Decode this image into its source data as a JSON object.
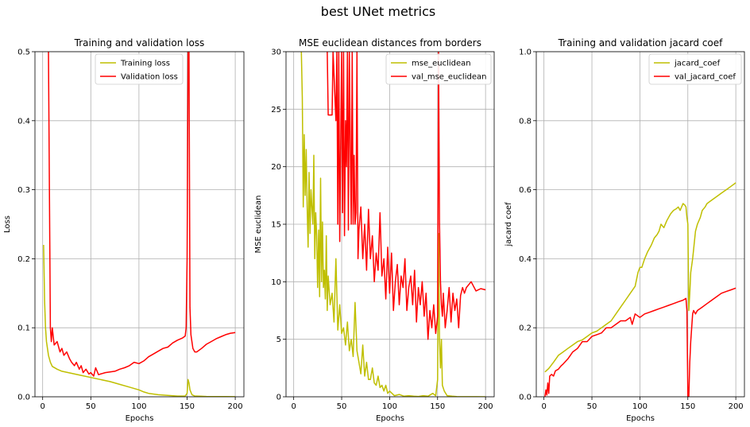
{
  "figure": {
    "suptitle": "best UNet metrics"
  },
  "chart_data": [
    {
      "type": "line",
      "title": "Training and validation loss",
      "xlabel": "Epochs",
      "ylabel": "Loss",
      "xlim": [
        -8,
        209
      ],
      "ylim": [
        0,
        0.5
      ],
      "xticks": [
        0,
        50,
        100,
        150,
        200
      ],
      "xtick_labels": [
        "0",
        "50",
        "100",
        "150",
        "200"
      ],
      "yticks": [
        0,
        0.1,
        0.2,
        0.3,
        0.4,
        0.5
      ],
      "ytick_labels": [
        "0.0",
        "0.1",
        "0.2",
        "0.3",
        "0.4",
        "0.5"
      ],
      "grid": true,
      "legend_position": "top-center",
      "series": [
        {
          "name": "Training loss",
          "color": "#bfbf00",
          "x": [
            1,
            2,
            3,
            4,
            6,
            8,
            10,
            15,
            20,
            30,
            40,
            50,
            60,
            70,
            80,
            90,
            100,
            105,
            110,
            120,
            130,
            140,
            148,
            150,
            151,
            152,
            153,
            155,
            158,
            160,
            170,
            180,
            190,
            200
          ],
          "y": [
            0.22,
            0.14,
            0.1,
            0.08,
            0.06,
            0.05,
            0.044,
            0.04,
            0.037,
            0.034,
            0.031,
            0.028,
            0.025,
            0.022,
            0.018,
            0.014,
            0.01,
            0.007,
            0.005,
            0.003,
            0.002,
            0.001,
            0.001,
            0.005,
            0.025,
            0.02,
            0.01,
            0.003,
            0.001,
            0.001,
            0.0005,
            0.0003,
            0.0002,
            0.0001
          ]
        },
        {
          "name": "Validation loss",
          "color": "#ff0000",
          "x": [
            6,
            7,
            8,
            9,
            10,
            12,
            15,
            18,
            20,
            22,
            25,
            28,
            30,
            33,
            35,
            38,
            40,
            42,
            45,
            48,
            50,
            53,
            55,
            58,
            60,
            65,
            70,
            75,
            80,
            85,
            90,
            95,
            100,
            105,
            110,
            115,
            120,
            125,
            130,
            135,
            140,
            145,
            148,
            149,
            150,
            151,
            152,
            153,
            154,
            156,
            158,
            160,
            165,
            170,
            175,
            180,
            185,
            190,
            195,
            200
          ],
          "y": [
            0.5,
            0.3,
            0.1,
            0.08,
            0.1,
            0.075,
            0.08,
            0.065,
            0.07,
            0.06,
            0.065,
            0.055,
            0.05,
            0.045,
            0.05,
            0.04,
            0.045,
            0.035,
            0.04,
            0.033,
            0.035,
            0.03,
            0.042,
            0.032,
            0.033,
            0.035,
            0.036,
            0.037,
            0.04,
            0.042,
            0.045,
            0.05,
            0.048,
            0.052,
            0.058,
            0.062,
            0.066,
            0.07,
            0.072,
            0.078,
            0.082,
            0.085,
            0.088,
            0.1,
            0.2,
            0.5,
            0.5,
            0.13,
            0.09,
            0.07,
            0.065,
            0.065,
            0.07,
            0.076,
            0.08,
            0.084,
            0.087,
            0.09,
            0.092,
            0.093
          ]
        }
      ]
    },
    {
      "type": "line",
      "title": "MSE euclidean distances from borders",
      "xlabel": "Epochs",
      "ylabel": "MSE euclidean",
      "xlim": [
        -8,
        209
      ],
      "ylim": [
        0,
        30
      ],
      "xticks": [
        0,
        50,
        100,
        150,
        200
      ],
      "xtick_labels": [
        "0",
        "50",
        "100",
        "150",
        "200"
      ],
      "yticks": [
        0,
        5,
        10,
        15,
        20,
        25,
        30
      ],
      "ytick_labels": [
        "0",
        "5",
        "10",
        "15",
        "20",
        "25",
        "30"
      ],
      "grid": true,
      "legend_position": "top-right",
      "series": [
        {
          "name": "mse_euclidean",
          "color": "#bfbf00",
          "x": [
            8,
            9,
            10,
            11,
            12,
            13,
            14,
            15,
            16,
            17,
            18,
            19,
            20,
            21,
            22,
            23,
            24,
            25,
            26,
            27,
            28,
            29,
            30,
            31,
            32,
            33,
            34,
            35,
            36,
            38,
            40,
            42,
            44,
            46,
            48,
            50,
            52,
            54,
            56,
            58,
            60,
            62,
            64,
            66,
            68,
            70,
            72,
            74,
            76,
            78,
            80,
            82,
            84,
            86,
            88,
            90,
            92,
            94,
            96,
            98,
            100,
            105,
            110,
            115,
            120,
            125,
            130,
            135,
            140,
            145,
            148,
            150,
            151,
            152,
            153,
            154,
            155,
            157,
            160,
            165,
            170,
            180,
            190,
            200
          ],
          "y": [
            30,
            26,
            16.5,
            22.8,
            17.5,
            21.5,
            16.5,
            13,
            19.5,
            14.2,
            18,
            16.5,
            15,
            21,
            12,
            16,
            14,
            9.5,
            14.5,
            8.7,
            19,
            10,
            15.2,
            9.5,
            11,
            8.5,
            14,
            7.5,
            10.5,
            8,
            9,
            6.5,
            12,
            5.8,
            8,
            5.5,
            6,
            4.5,
            6.5,
            4,
            5,
            3.5,
            8.2,
            4,
            3,
            2,
            4.5,
            1.8,
            3,
            1.5,
            1.5,
            2.5,
            1.2,
            1,
            1.8,
            0.8,
            1,
            0.5,
            1,
            0.3,
            0.5,
            0.1,
            0.2,
            0.05,
            0.1,
            0.05,
            0.03,
            0.1,
            0.05,
            0.3,
            0.1,
            1.5,
            14.2,
            5,
            2.5,
            5,
            1,
            0.5,
            0.1,
            0.05,
            0.02,
            0.01,
            0.005,
            0.002
          ]
        },
        {
          "name": "val_mse_euclidean",
          "color": "#ff0000",
          "x": [
            35,
            36,
            40,
            41,
            44,
            45,
            46,
            47,
            48,
            49,
            50,
            51,
            52,
            53,
            54,
            55,
            56,
            57,
            58,
            59,
            60,
            61,
            62,
            63,
            64,
            65,
            66,
            67,
            68,
            70,
            72,
            74,
            76,
            78,
            80,
            82,
            84,
            86,
            88,
            90,
            92,
            94,
            96,
            98,
            100,
            102,
            104,
            106,
            108,
            110,
            112,
            114,
            116,
            118,
            120,
            122,
            124,
            126,
            128,
            130,
            132,
            134,
            136,
            138,
            140,
            142,
            144,
            146,
            148,
            150,
            151,
            152,
            153,
            154,
            155,
            156,
            158,
            160,
            162,
            164,
            166,
            168,
            170,
            172,
            174,
            176,
            178,
            180,
            185,
            190,
            195,
            200
          ],
          "y": [
            30,
            24.5,
            24.5,
            30,
            24,
            30,
            15,
            30,
            13.5,
            22,
            30,
            16,
            30,
            14,
            24,
            20,
            30,
            14.5,
            30,
            22,
            15,
            30,
            15,
            21,
            15,
            16,
            30,
            12,
            14.5,
            16.5,
            12,
            15,
            11,
            16.3,
            12,
            14,
            10,
            12.5,
            11,
            16,
            10.5,
            12,
            8.5,
            13,
            9,
            12.5,
            7.5,
            10,
            11.5,
            8,
            10.5,
            9.5,
            12,
            7.5,
            9.5,
            10.5,
            8,
            11,
            6.5,
            9.5,
            8,
            10,
            7,
            9,
            5,
            7.5,
            6,
            8,
            5.5,
            7,
            30,
            15,
            10,
            8,
            7,
            9,
            6,
            7.5,
            9.5,
            6.5,
            9,
            7.5,
            8.5,
            6,
            8.8,
            9.5,
            9,
            9.5,
            10,
            9.2,
            9.4,
            9.3
          ]
        }
      ]
    },
    {
      "type": "line",
      "title": "Training and validation jacard coef",
      "xlabel": "Epochs",
      "ylabel": "jacard coef",
      "xlim": [
        -8,
        209
      ],
      "ylim": [
        0,
        1
      ],
      "xticks": [
        0,
        50,
        100,
        150,
        200
      ],
      "xtick_labels": [
        "0",
        "50",
        "100",
        "150",
        "200"
      ],
      "yticks": [
        0,
        0.2,
        0.4,
        0.6,
        0.8,
        1.0
      ],
      "ytick_labels": [
        "0.0",
        "0.2",
        "0.4",
        "0.6",
        "0.8",
        "1.0"
      ],
      "grid": true,
      "legend_position": "top-right",
      "series": [
        {
          "name": "jacard_coef",
          "color": "#bfbf00",
          "x": [
            1,
            5,
            10,
            15,
            20,
            25,
            30,
            35,
            40,
            45,
            50,
            55,
            60,
            65,
            70,
            75,
            80,
            85,
            90,
            95,
            98,
            100,
            102,
            105,
            108,
            110,
            112,
            115,
            118,
            120,
            122,
            125,
            128,
            130,
            132,
            135,
            138,
            140,
            142,
            145,
            147,
            148,
            149,
            150,
            151,
            152,
            153,
            155,
            158,
            160,
            163,
            165,
            168,
            170,
            175,
            180,
            185,
            190,
            195,
            200
          ],
          "y": [
            0.072,
            0.082,
            0.1,
            0.12,
            0.13,
            0.14,
            0.15,
            0.16,
            0.165,
            0.175,
            0.185,
            0.19,
            0.2,
            0.21,
            0.22,
            0.24,
            0.26,
            0.28,
            0.3,
            0.32,
            0.36,
            0.375,
            0.375,
            0.4,
            0.42,
            0.43,
            0.44,
            0.46,
            0.47,
            0.48,
            0.5,
            0.49,
            0.51,
            0.52,
            0.53,
            0.54,
            0.545,
            0.55,
            0.54,
            0.56,
            0.555,
            0.55,
            0.52,
            0.5,
            0.25,
            0.3,
            0.36,
            0.4,
            0.48,
            0.5,
            0.52,
            0.54,
            0.55,
            0.56,
            0.57,
            0.58,
            0.59,
            0.6,
            0.61,
            0.62
          ]
        },
        {
          "name": "val_jacard_coef",
          "color": "#ff0000",
          "x": [
            1,
            2,
            3,
            4,
            5,
            6,
            8,
            10,
            12,
            15,
            18,
            20,
            25,
            30,
            35,
            40,
            45,
            50,
            55,
            60,
            65,
            70,
            75,
            80,
            85,
            90,
            92,
            95,
            100,
            105,
            110,
            115,
            120,
            125,
            130,
            135,
            140,
            145,
            148,
            149,
            150,
            151,
            152,
            153,
            154,
            155,
            156,
            158,
            160,
            165,
            170,
            175,
            180,
            185,
            190,
            195,
            200
          ],
          "y": [
            0,
            0.02,
            0.005,
            0.04,
            0.01,
            0.06,
            0.065,
            0.06,
            0.075,
            0.08,
            0.09,
            0.095,
            0.11,
            0.13,
            0.14,
            0.16,
            0.16,
            0.175,
            0.18,
            0.185,
            0.2,
            0.2,
            0.21,
            0.22,
            0.22,
            0.23,
            0.21,
            0.24,
            0.23,
            0.24,
            0.245,
            0.25,
            0.255,
            0.26,
            0.265,
            0.27,
            0.275,
            0.28,
            0.285,
            0.25,
            0.0,
            0.0,
            0.1,
            0.16,
            0.2,
            0.24,
            0.25,
            0.24,
            0.25,
            0.26,
            0.27,
            0.28,
            0.29,
            0.3,
            0.305,
            0.31,
            0.315
          ]
        }
      ]
    }
  ]
}
